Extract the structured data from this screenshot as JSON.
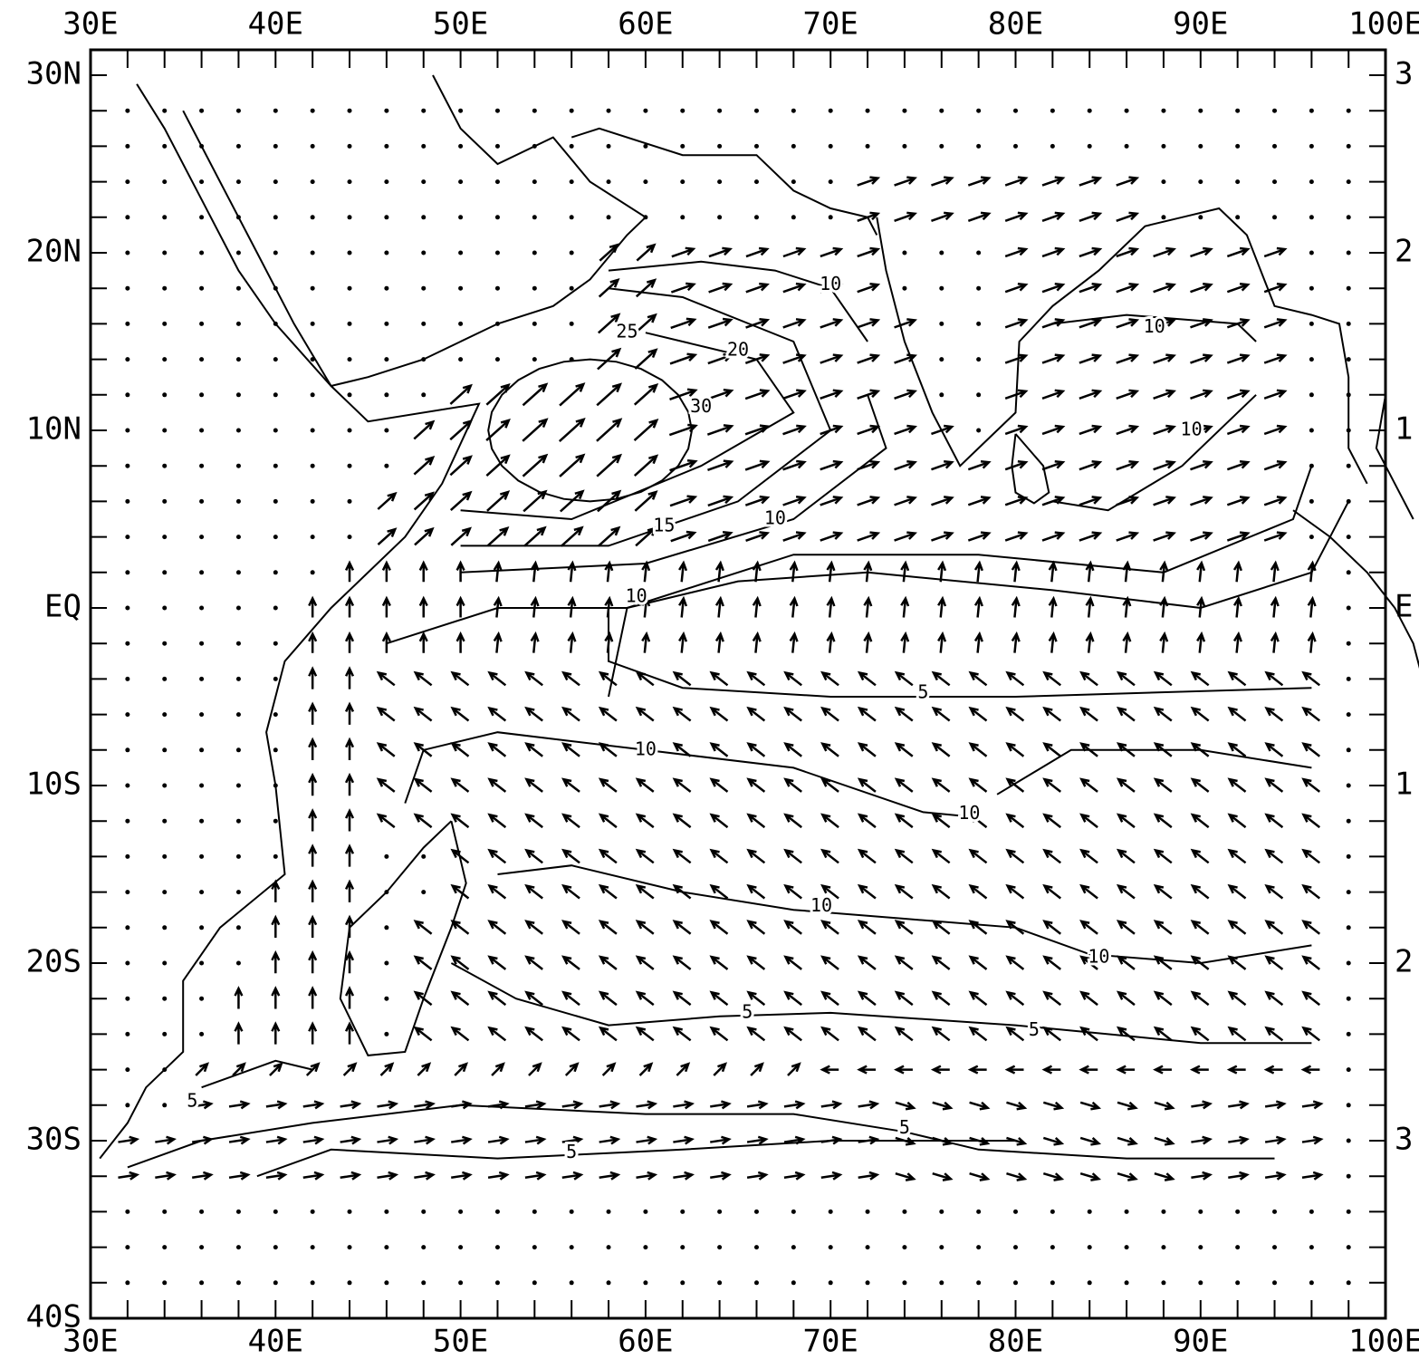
{
  "map": {
    "top_labels": [
      "30E",
      "40E",
      "50E",
      "60E",
      "70E",
      "80E",
      "90E",
      "100E"
    ],
    "bottom_labels": [
      "30E",
      "40E",
      "50E",
      "60E",
      "70E",
      "80E",
      "90E",
      "100E"
    ],
    "left_labels": [
      "30N",
      "20N",
      "10N",
      "EQ",
      "10S",
      "20S",
      "30S",
      "40S"
    ],
    "right_labels": [
      "3",
      "2",
      "1",
      "E",
      "1",
      "2",
      "3"
    ],
    "contour_labels": [
      "10",
      "25",
      "20",
      "30",
      "15",
      "10",
      "10",
      "10",
      "10",
      "5",
      "10",
      "10",
      "10",
      "10",
      "5",
      "5",
      "5",
      "5",
      "5"
    ]
  }
}
